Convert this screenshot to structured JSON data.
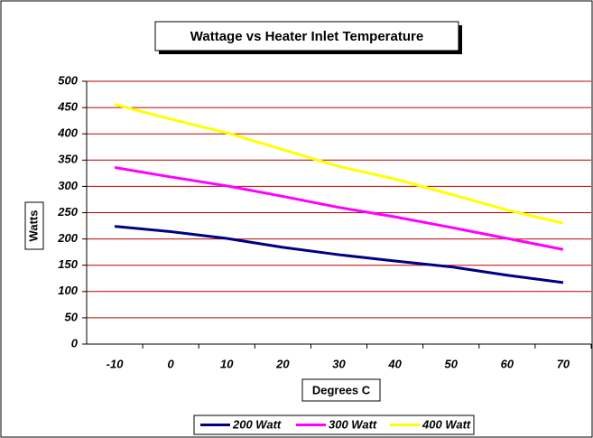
{
  "chart_data": {
    "type": "line",
    "title": "Wattage vs Heater Inlet Temperature",
    "x_label": "Degrees C",
    "y_label": "Watts",
    "categories": [
      -10,
      0,
      10,
      20,
      30,
      40,
      50,
      60,
      70
    ],
    "series": [
      {
        "name": "200 Watt",
        "color": "#000080",
        "values": [
          224,
          214,
          201,
          184,
          170,
          158,
          147,
          131,
          117
        ]
      },
      {
        "name": "300 Watt",
        "color": "#ff00ff",
        "values": [
          336,
          318,
          301,
          281,
          260,
          242,
          222,
          201,
          180
        ]
      },
      {
        "name": "400 Watt",
        "color": "#ffff00",
        "values": [
          456,
          428,
          402,
          370,
          338,
          314,
          285,
          255,
          230
        ]
      }
    ],
    "ylim": [
      0,
      500
    ],
    "yticks": [
      0,
      50,
      100,
      150,
      200,
      250,
      300,
      350,
      400,
      450,
      500
    ],
    "grid": true,
    "grid_color": "#c00000",
    "legend": "bottom"
  }
}
